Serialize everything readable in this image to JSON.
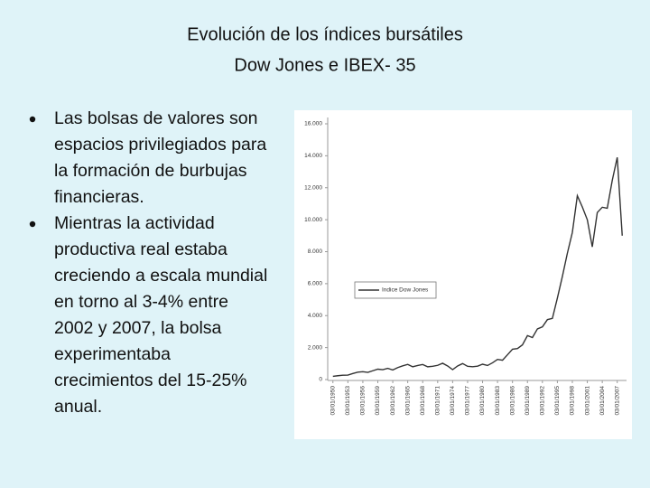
{
  "title": [
    "Evolución de los índices bursátiles",
    "Dow Jones e IBEX- 35"
  ],
  "bullets": [
    [
      "Las bolsas de valores son",
      "espacios privilegiados para",
      "la formación de  burbujas",
      "financieras."
    ],
    [
      "Mientras  la actividad",
      "productiva real estaba",
      "creciendo a escala mundial",
      "en torno al 3-4% entre",
      "2002 y 2007, la bolsa",
      "experimentaba",
      "crecimientos del 15-25%",
      "anual."
    ]
  ],
  "chart_data": {
    "type": "line",
    "x": [
      1950,
      1951,
      1952,
      1953,
      1954,
      1955,
      1956,
      1957,
      1958,
      1959,
      1960,
      1961,
      1962,
      1963,
      1964,
      1965,
      1966,
      1967,
      1968,
      1969,
      1970,
      1971,
      1972,
      1973,
      1974,
      1975,
      1976,
      1977,
      1978,
      1979,
      1980,
      1981,
      1982,
      1983,
      1984,
      1985,
      1986,
      1987,
      1988,
      1989,
      1990,
      1991,
      1992,
      1993,
      1994,
      1995,
      1996,
      1997,
      1998,
      1999,
      2000,
      2001,
      2002,
      2003,
      2004,
      2005,
      2006,
      2007,
      2008
    ],
    "series": [
      {
        "name": "Indice Dow Jones",
        "color": "#333333",
        "values": [
          200,
          240,
          270,
          280,
          380,
          460,
          490,
          450,
          550,
          650,
          620,
          700,
          600,
          750,
          860,
          950,
          800,
          880,
          940,
          800,
          830,
          890,
          1020,
          850,
          620,
          850,
          1000,
          830,
          800,
          840,
          960,
          880,
          1050,
          1260,
          1210,
          1550,
          1900,
          1940,
          2170,
          2750,
          2630,
          3170,
          3300,
          3750,
          3830,
          5100,
          6450,
          7900,
          9200,
          11500,
          10800,
          10000,
          8300,
          10450,
          10780,
          10720,
          12460,
          13900,
          9000
        ]
      }
    ],
    "xlim": [
      1949.5,
      2008.5
    ],
    "xticks": [
      {
        "value": 1950,
        "label": "03/01/1950"
      },
      {
        "value": 1953,
        "label": "03/01/1953"
      },
      {
        "value": 1956,
        "label": "03/01/1956"
      },
      {
        "value": 1959,
        "label": "03/01/1959"
      },
      {
        "value": 1962,
        "label": "03/01/1962"
      },
      {
        "value": 1965,
        "label": "03/01/1965"
      },
      {
        "value": 1968,
        "label": "03/01/1968"
      },
      {
        "value": 1971,
        "label": "03/01/1971"
      },
      {
        "value": 1974,
        "label": "03/01/1974"
      },
      {
        "value": 1977,
        "label": "03/01/1977"
      },
      {
        "value": 1980,
        "label": "03/01/1980"
      },
      {
        "value": 1983,
        "label": "03/01/1983"
      },
      {
        "value": 1986,
        "label": "03/01/1986"
      },
      {
        "value": 1989,
        "label": "03/01/1989"
      },
      {
        "value": 1992,
        "label": "03/01/1992"
      },
      {
        "value": 1995,
        "label": "03/01/1995"
      },
      {
        "value": 1998,
        "label": "03/01/1998"
      },
      {
        "value": 2001,
        "label": "03/01/2001"
      },
      {
        "value": 2004,
        "label": "03/01/2004"
      },
      {
        "value": 2007,
        "label": "03/01/2007"
      }
    ],
    "ylim": [
      0,
      16000
    ],
    "yticks": [
      0,
      {
        "value": 2000,
        "label": "2.000"
      },
      {
        "value": 4000,
        "label": "4.000"
      },
      {
        "value": 6000,
        "label": "6.000"
      },
      {
        "value": 8000,
        "label": "8.000"
      },
      {
        "value": 10000,
        "label": "10.000"
      },
      {
        "value": 12000,
        "label": "12.000"
      },
      {
        "value": 14000,
        "label": "14.000"
      },
      {
        "value": 16000,
        "label": "16.000"
      }
    ]
  }
}
